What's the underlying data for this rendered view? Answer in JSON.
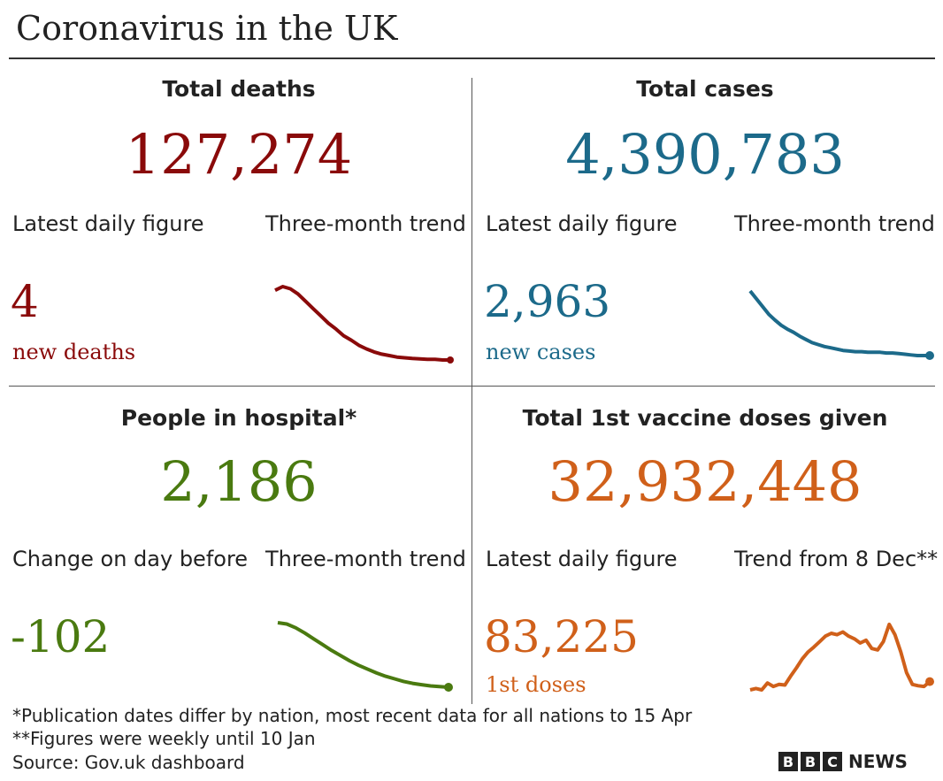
{
  "title": "Coronavirus in the UK",
  "colors": {
    "deaths": "#8a0a0a",
    "cases": "#1c6a8a",
    "hospital": "#4a7a10",
    "vaccine": "#d0601a"
  },
  "panels": {
    "deaths": {
      "heading": "Total deaths",
      "total": "127,274",
      "left_label": "Latest daily figure",
      "right_label": "Three-month trend",
      "daily": "4",
      "unit": "new deaths"
    },
    "cases": {
      "heading": "Total cases",
      "total": "4,390,783",
      "left_label": "Latest daily figure",
      "right_label": "Three-month trend",
      "daily": "2,963",
      "unit": "new cases"
    },
    "hospital": {
      "heading": "People in hospital*",
      "total": "2,186",
      "left_label": "Change on day before",
      "right_label": "Three-month trend",
      "daily": "-102"
    },
    "vaccine": {
      "heading": "Total 1st vaccine doses given",
      "total": "32,932,448",
      "left_label": "Latest daily figure",
      "right_label": "Trend from 8 Dec**",
      "daily": "83,225",
      "unit": "1st doses"
    }
  },
  "chart_data": [
    {
      "type": "line",
      "name": "deaths-trend",
      "values": [
        0.95,
        1.0,
        0.97,
        0.9,
        0.8,
        0.7,
        0.6,
        0.5,
        0.42,
        0.33,
        0.27,
        0.2,
        0.15,
        0.11,
        0.08,
        0.06,
        0.04,
        0.03,
        0.02,
        0.015,
        0.01,
        0.01,
        0.0,
        0.0
      ]
    },
    {
      "type": "line",
      "name": "cases-trend",
      "values": [
        1.0,
        0.88,
        0.76,
        0.64,
        0.55,
        0.47,
        0.41,
        0.36,
        0.3,
        0.25,
        0.2,
        0.17,
        0.14,
        0.12,
        0.1,
        0.08,
        0.07,
        0.06,
        0.06,
        0.05,
        0.05,
        0.05,
        0.04,
        0.04,
        0.03,
        0.02,
        0.01,
        0.0,
        0.0,
        0.0
      ]
    },
    {
      "type": "line",
      "name": "hospital-trend",
      "values": [
        1.0,
        0.98,
        0.92,
        0.84,
        0.75,
        0.66,
        0.57,
        0.49,
        0.41,
        0.34,
        0.28,
        0.22,
        0.17,
        0.13,
        0.09,
        0.06,
        0.04,
        0.02,
        0.01,
        0.0
      ]
    },
    {
      "type": "line",
      "name": "vaccine-trend",
      "values": [
        0.0,
        0.02,
        0.0,
        0.1,
        0.05,
        0.08,
        0.07,
        0.2,
        0.32,
        0.45,
        0.55,
        0.62,
        0.7,
        0.78,
        0.82,
        0.8,
        0.84,
        0.78,
        0.74,
        0.68,
        0.72,
        0.6,
        0.58,
        0.7,
        0.95,
        0.8,
        0.55,
        0.25,
        0.08,
        0.06,
        0.05,
        0.12
      ]
    }
  ],
  "footnotes": {
    "note1": "*Publication dates differ by nation, most recent data for all nations to 15 Apr",
    "note2": "**Figures were weekly until 10 Jan",
    "source": "Source: Gov.uk dashboard"
  },
  "brand": {
    "letters": [
      "B",
      "B",
      "C"
    ],
    "news": "NEWS"
  }
}
